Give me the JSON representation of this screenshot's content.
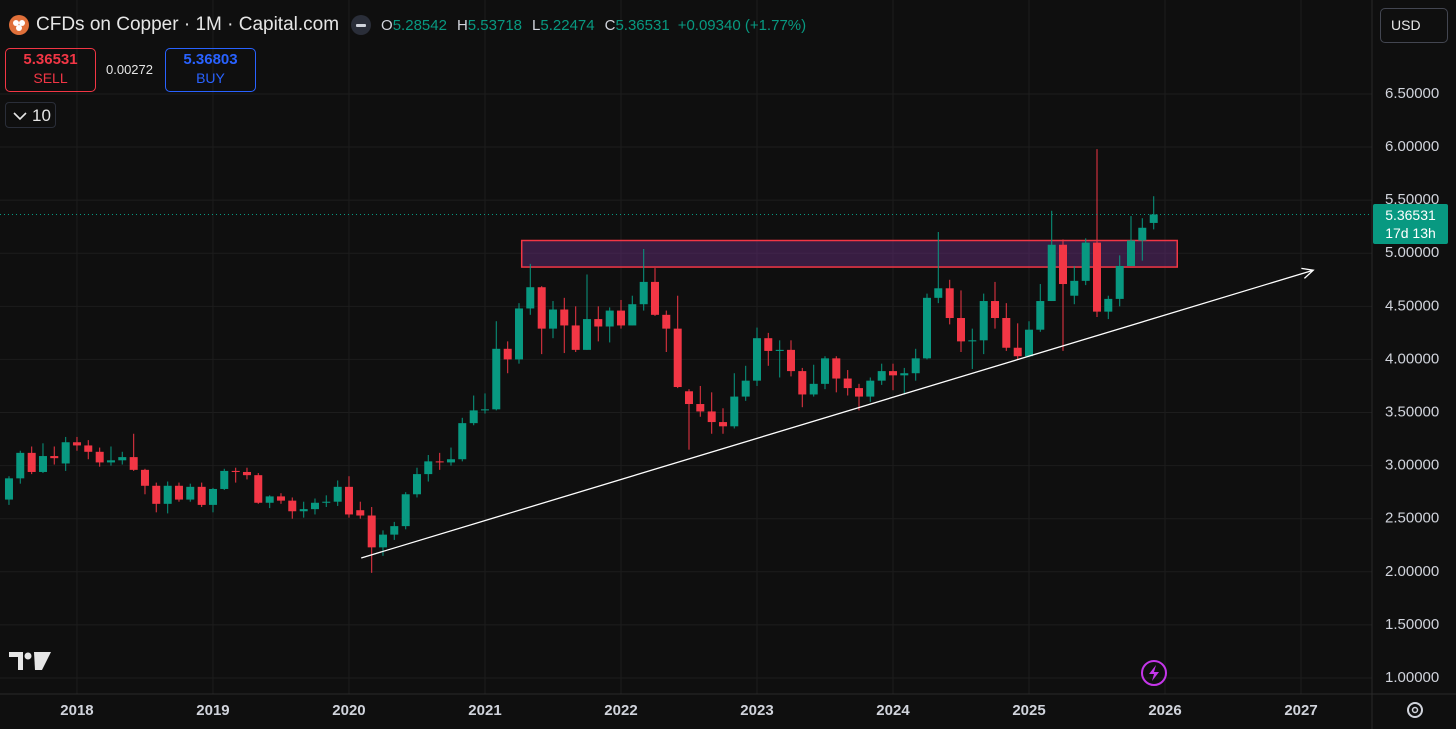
{
  "header": {
    "title": "CFDs on Copper · 1M · Capital.com",
    "o_label": "O",
    "h_label": "H",
    "l_label": "L",
    "c_label": "C",
    "change": "+0.09340 (+1.77%)",
    "currency": "USD"
  },
  "trade": {
    "sell": "SELL",
    "spread": 0.00272,
    "buy_price": 5.36803,
    "buy": "BUY",
    "interval": "10"
  },
  "countdown": "17d 13h",
  "chart_data": {
    "type": "candlestick",
    "up_color": "#089981",
    "down_color": "#f23645",
    "x": [
      2017.5,
      2017.583,
      2017.667,
      2017.75,
      2017.833,
      2017.917,
      2018,
      2018.083,
      2018.167,
      2018.25,
      2018.333,
      2018.417,
      2018.5,
      2018.583,
      2018.667,
      2018.75,
      2018.833,
      2018.917,
      2019,
      2019.083,
      2019.167,
      2019.25,
      2019.333,
      2019.417,
      2019.5,
      2019.583,
      2019.667,
      2019.75,
      2019.833,
      2019.917,
      2020,
      2020.083,
      2020.167,
      2020.25,
      2020.333,
      2020.417,
      2020.5,
      2020.583,
      2020.667,
      2020.75,
      2020.833,
      2020.917,
      2021,
      2021.083,
      2021.167,
      2021.25,
      2021.333,
      2021.417,
      2021.5,
      2021.583,
      2021.667,
      2021.75,
      2021.833,
      2021.917,
      2022,
      2022.083,
      2022.167,
      2022.25,
      2022.333,
      2022.417,
      2022.5,
      2022.583,
      2022.667,
      2022.75,
      2022.833,
      2022.917,
      2023,
      2023.083,
      2023.167,
      2023.25,
      2023.333,
      2023.417,
      2023.5,
      2023.583,
      2023.667,
      2023.75,
      2023.833,
      2023.917,
      2024,
      2024.083,
      2024.167,
      2024.25,
      2024.333,
      2024.417,
      2024.5,
      2024.583,
      2024.667,
      2024.75,
      2024.833,
      2024.917,
      2025,
      2025.083,
      2025.167,
      2025.25,
      2025.333,
      2025.417,
      2025.5,
      2025.583,
      2025.667,
      2025.75,
      2025.833,
      2025.917
    ],
    "open": [
      2.68,
      2.88,
      3.12,
      2.94,
      3.09,
      3.02,
      3.22,
      3.19,
      3.13,
      3.03,
      3.05,
      3.08,
      2.96,
      2.81,
      2.64,
      2.81,
      2.68,
      2.8,
      2.63,
      2.78,
      2.95,
      2.94,
      2.91,
      2.65,
      2.71,
      2.67,
      2.57,
      2.59,
      2.65,
      2.66,
      2.8,
      2.58,
      2.53,
      2.23,
      2.35,
      2.43,
      2.73,
      2.92,
      3.04,
      3.03,
      3.06,
      3.4,
      3.52,
      3.53,
      4.1,
      4.0,
      4.48,
      4.68,
      4.29,
      4.47,
      4.32,
      4.09,
      4.38,
      4.31,
      4.46,
      4.32,
      4.52,
      4.73,
      4.42,
      4.29,
      3.7,
      3.58,
      3.51,
      3.41,
      3.37,
      3.65,
      3.8,
      4.2,
      4.08,
      4.09,
      3.89,
      3.67,
      3.77,
      4.01,
      3.82,
      3.73,
      3.65,
      3.8,
      3.89,
      3.85,
      3.87,
      4.01,
      4.58,
      4.67,
      4.39,
      4.17,
      4.18,
      4.55,
      4.39,
      4.11,
      4.03,
      4.28,
      4.55,
      5.08,
      4.6,
      4.74,
      5.1,
      4.45,
      4.57,
      4.88,
      5.12,
      5.28542
    ],
    "high": [
      2.9,
      3.14,
      3.18,
      3.21,
      3.18,
      3.27,
      3.27,
      3.24,
      3.17,
      3.18,
      3.13,
      3.3,
      2.97,
      2.84,
      2.85,
      2.84,
      2.83,
      2.84,
      2.79,
      2.97,
      2.98,
      2.98,
      2.93,
      2.72,
      2.74,
      2.7,
      2.66,
      2.69,
      2.72,
      2.86,
      2.9,
      2.66,
      2.61,
      2.39,
      2.47,
      2.75,
      2.98,
      3.1,
      3.12,
      3.17,
      3.45,
      3.66,
      3.68,
      4.36,
      4.17,
      4.53,
      4.9,
      4.69,
      4.55,
      4.58,
      4.5,
      4.8,
      4.5,
      4.49,
      4.56,
      4.6,
      5.04,
      4.86,
      4.46,
      4.6,
      3.72,
      3.75,
      3.69,
      3.54,
      3.87,
      3.94,
      4.3,
      4.25,
      4.18,
      4.18,
      3.92,
      3.95,
      4.03,
      4.03,
      3.9,
      3.77,
      3.83,
      3.96,
      3.96,
      3.92,
      4.1,
      4.62,
      5.2,
      4.75,
      4.65,
      4.29,
      4.62,
      4.73,
      4.53,
      4.34,
      4.36,
      4.71,
      5.4,
      5.13,
      4.88,
      5.14,
      5.98,
      4.6,
      4.98,
      5.35,
      5.33,
      5.53718
    ],
    "low": [
      2.63,
      2.83,
      2.92,
      2.93,
      3.01,
      2.95,
      3.14,
      3.06,
      2.99,
      3.0,
      3.01,
      2.95,
      2.73,
      2.56,
      2.55,
      2.66,
      2.66,
      2.61,
      2.56,
      2.77,
      2.84,
      2.87,
      2.64,
      2.6,
      2.64,
      2.5,
      2.51,
      2.54,
      2.61,
      2.62,
      2.51,
      2.5,
      1.99,
      2.15,
      2.3,
      2.4,
      2.7,
      2.85,
      2.96,
      3.0,
      3.04,
      3.38,
      3.49,
      3.52,
      3.87,
      3.96,
      4.42,
      4.05,
      4.2,
      4.06,
      4.07,
      4.09,
      4.17,
      4.16,
      4.29,
      4.32,
      4.46,
      4.41,
      4.07,
      3.73,
      3.15,
      3.46,
      3.3,
      3.3,
      3.35,
      3.61,
      3.75,
      3.94,
      3.83,
      3.84,
      3.55,
      3.65,
      3.72,
      3.69,
      3.66,
      3.52,
      3.6,
      3.76,
      3.71,
      3.67,
      3.8,
      4.0,
      4.53,
      4.33,
      4.07,
      3.91,
      4.05,
      4.29,
      4.08,
      4.0,
      4.02,
      4.26,
      4.55,
      4.08,
      4.52,
      4.7,
      4.4,
      4.38,
      4.5,
      4.88,
      4.93,
      5.22474
    ],
    "close": [
      2.88,
      3.12,
      2.94,
      3.09,
      3.07,
      3.22,
      3.19,
      3.13,
      3.03,
      3.05,
      3.08,
      2.96,
      2.81,
      2.64,
      2.81,
      2.68,
      2.8,
      2.63,
      2.78,
      2.95,
      2.94,
      2.91,
      2.65,
      2.71,
      2.67,
      2.57,
      2.59,
      2.65,
      2.66,
      2.8,
      2.54,
      2.53,
      2.23,
      2.35,
      2.43,
      2.73,
      2.92,
      3.04,
      3.03,
      3.06,
      3.4,
      3.52,
      3.53,
      4.1,
      4.0,
      4.48,
      4.68,
      4.29,
      4.47,
      4.32,
      4.09,
      4.38,
      4.31,
      4.46,
      4.32,
      4.52,
      4.73,
      4.42,
      4.29,
      3.74,
      3.58,
      3.51,
      3.41,
      3.37,
      3.65,
      3.8,
      4.2,
      4.08,
      4.09,
      3.89,
      3.67,
      3.77,
      4.01,
      3.82,
      3.73,
      3.65,
      3.8,
      3.89,
      3.85,
      3.87,
      4.01,
      4.58,
      4.67,
      4.39,
      4.17,
      4.18,
      4.55,
      4.39,
      4.11,
      4.03,
      4.28,
      4.55,
      5.08,
      4.71,
      4.74,
      5.1,
      4.45,
      4.57,
      4.88,
      5.12,
      5.24,
      5.36531
    ],
    "xlim": [
      2017.434,
      2027.522
    ],
    "xticks": [
      2018,
      2019,
      2020,
      2021,
      2022,
      2023,
      2024,
      2025,
      2026,
      2027
    ],
    "ylim": [
      0.849,
      7.385
    ],
    "yticks": [
      {
        "value": 1,
        "label": "1.00000"
      },
      {
        "value": 1.5,
        "label": "1.50000"
      },
      {
        "value": 2,
        "label": "2.00000"
      },
      {
        "value": 2.5,
        "label": "2.50000"
      },
      {
        "value": 3,
        "label": "3.00000"
      },
      {
        "value": 3.5,
        "label": "3.50000"
      },
      {
        "value": 4,
        "label": "4.00000"
      },
      {
        "value": 4.5,
        "label": "4.50000"
      },
      {
        "value": 5,
        "label": "5.00000"
      },
      {
        "value": 5.5,
        "label": "5.50000"
      },
      {
        "value": 6,
        "label": "6.00000"
      },
      {
        "value": 6.5,
        "label": "6.50000"
      }
    ],
    "grid": true,
    "zone": {
      "x": [
        2021.27,
        2026.09
      ],
      "y": [
        4.87,
        5.12
      ],
      "color": "#f23645"
    },
    "trendline": {
      "x": [
        2020.09,
        2027.09
      ],
      "y": [
        2.13,
        4.84
      ],
      "color": "#ffffff"
    }
  }
}
